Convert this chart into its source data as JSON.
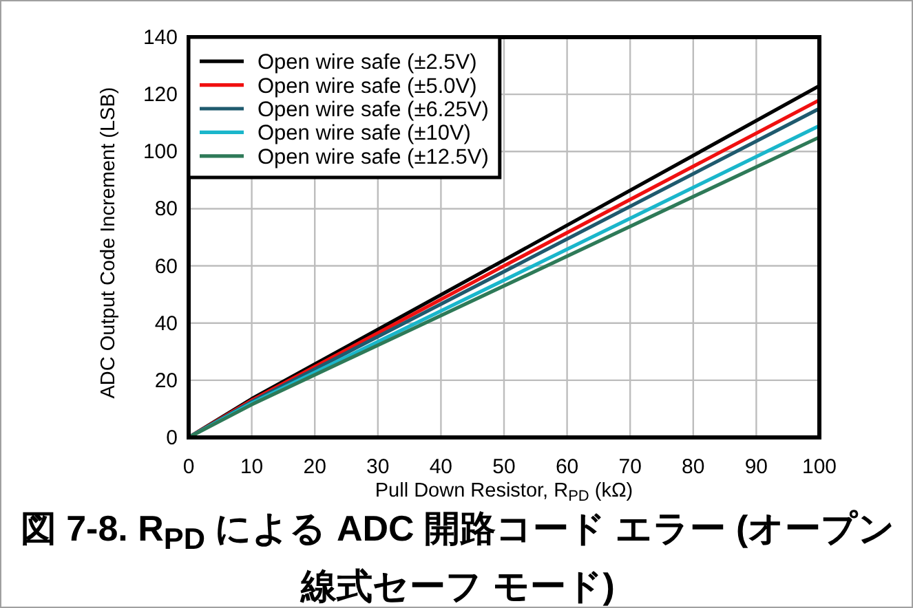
{
  "chart_data": {
    "type": "line",
    "title": "図 7-8. R$_{PD}$ による ADC 開路コード エラー (オープン線式セーフ モード)",
    "xlabel": "Pull Down Resistor, R$_{PD}$ (kΩ)",
    "ylabel": "ADC Output Code Increment (LSB)",
    "x": [
      0,
      10,
      50,
      100
    ],
    "series": [
      {
        "name": "Open wire safe (±2.5V)",
        "color": "#000000",
        "values": [
          0,
          13.5,
          62,
          123
        ]
      },
      {
        "name": "Open wire safe (±5.0V)",
        "color": "#f01010",
        "values": [
          0,
          13,
          60,
          118
        ]
      },
      {
        "name": "Open wire safe (±6.25V)",
        "color": "#1f5a6e",
        "values": [
          0,
          12.5,
          58,
          115
        ]
      },
      {
        "name": "Open wire safe (±10V)",
        "color": "#1ab6cb",
        "values": [
          0,
          12,
          55,
          109
        ]
      },
      {
        "name": "Open wire safe (±12.5V)",
        "color": "#2e7a58",
        "values": [
          0,
          11.5,
          53,
          105
        ]
      }
    ],
    "xlim": [
      0,
      100
    ],
    "ylim": [
      0,
      140
    ],
    "xticks": [
      0,
      10,
      20,
      30,
      40,
      50,
      60,
      70,
      80,
      90,
      100
    ],
    "yticks": [
      0,
      20,
      40,
      60,
      80,
      100,
      120,
      140
    ],
    "grid": true,
    "legend": "top left"
  }
}
